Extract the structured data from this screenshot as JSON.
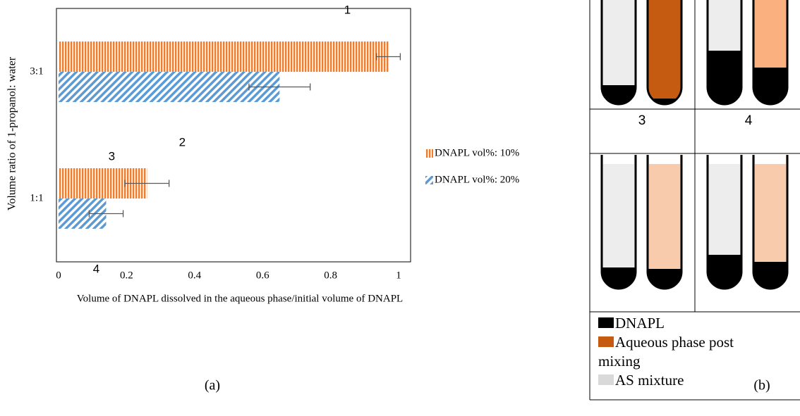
{
  "chart_data": {
    "type": "bar",
    "orientation": "horizontal",
    "xlabel": "Volume of DNAPL dissolved in the aqueous phase/initial volume of DNAPL",
    "ylabel": "Volume ratio of 1-propanol: water",
    "categories": [
      "3:1",
      "1:1"
    ],
    "series": [
      {
        "name": "DNAPL vol%: 10%",
        "color": "#ed7d31",
        "hatch": "vertical",
        "values": [
          0.97,
          0.26
        ],
        "errors": [
          0.035,
          0.065
        ],
        "labels": [
          "1",
          "3"
        ]
      },
      {
        "name": "DNAPL vol%: 20%",
        "color": "#5b9bd5",
        "hatch": "diagonal",
        "values": [
          0.65,
          0.14
        ],
        "errors": [
          0.09,
          0.05
        ],
        "labels": [
          "2",
          "4"
        ]
      }
    ],
    "xlim": [
      0,
      1
    ],
    "xticks": [
      0,
      0.2,
      0.4,
      0.6,
      0.8,
      1
    ],
    "grid": false,
    "legend": "right",
    "panel_label": "(a)"
  },
  "diagram": {
    "cells": [
      "3",
      "4"
    ],
    "legend": [
      {
        "label": "DNAPL",
        "color": "#000000"
      },
      {
        "label": "Aqueous phase post mixing",
        "color": "#c55a11"
      },
      {
        "label": "AS mixture",
        "color": "#d9d9d9"
      }
    ],
    "panel_label": "(b)"
  }
}
